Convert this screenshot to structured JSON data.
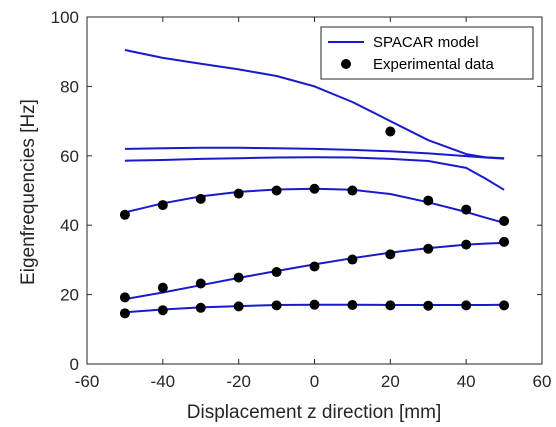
{
  "chart_data": {
    "type": "line",
    "title": "",
    "xlabel": "Displacement z direction [mm]",
    "ylabel": "Eigenfrequencies [Hz]",
    "xlim": [
      -60,
      60
    ],
    "ylim": [
      0,
      100
    ],
    "x_ticks": [
      "-60",
      "-40",
      "-20",
      "0",
      "20",
      "40",
      "60"
    ],
    "y_ticks": [
      "0",
      "20",
      "40",
      "60",
      "80",
      "100"
    ],
    "grid": false,
    "legend_position": "top-right",
    "colors": {
      "model": "#1a1acc",
      "data": "#000000",
      "axes": "#262626"
    },
    "legend": [
      {
        "label": "SPACAR model",
        "kind": "line"
      },
      {
        "label": "Experimental data",
        "kind": "marker"
      }
    ],
    "series": [
      {
        "kind": "line",
        "x": [
          -50,
          -40,
          -30,
          -20,
          -10,
          0,
          10,
          20,
          30,
          40,
          45,
          50
        ],
        "y": [
          90.5,
          88.2,
          86.5,
          84.9,
          83.0,
          80.0,
          75.5,
          70.0,
          64.5,
          60.5,
          59.6,
          59.3
        ]
      },
      {
        "kind": "line",
        "x": [
          -50,
          -40,
          -30,
          -20,
          -10,
          0,
          10,
          20,
          30,
          40,
          45,
          50
        ],
        "y": [
          62.0,
          62.2,
          62.3,
          62.3,
          62.2,
          62.0,
          61.7,
          61.3,
          60.7,
          59.9,
          59.5,
          59.2
        ]
      },
      {
        "kind": "line",
        "x": [
          -50,
          -40,
          -30,
          -20,
          -10,
          0,
          10,
          20,
          30,
          40,
          45,
          50
        ],
        "y": [
          58.6,
          58.8,
          59.1,
          59.3,
          59.5,
          59.6,
          59.5,
          59.1,
          58.5,
          56.5,
          53.5,
          50.2
        ]
      },
      {
        "kind": "line",
        "x": [
          -50,
          -40,
          -30,
          -20,
          -10,
          0,
          10,
          20,
          30,
          40,
          45,
          50
        ],
        "y": [
          43.7,
          46.3,
          48.3,
          49.6,
          50.3,
          50.5,
          50.2,
          49.0,
          46.6,
          43.8,
          42.2,
          40.7
        ]
      },
      {
        "kind": "line",
        "x": [
          -50,
          -40,
          -30,
          -20,
          -10,
          0,
          10,
          20,
          30,
          40,
          45,
          50
        ],
        "y": [
          18.7,
          20.6,
          22.7,
          24.8,
          26.8,
          28.7,
          30.5,
          32.1,
          33.4,
          34.4,
          34.7,
          34.9
        ]
      },
      {
        "kind": "line",
        "x": [
          -50,
          -40,
          -30,
          -20,
          -10,
          0,
          10,
          20,
          30,
          40,
          45,
          50
        ],
        "y": [
          14.9,
          15.7,
          16.3,
          16.7,
          17.0,
          17.1,
          17.1,
          17.0,
          17.0,
          17.0,
          17.0,
          17.1
        ]
      },
      {
        "kind": "scatter",
        "x": [
          -50,
          -40,
          -30,
          -20,
          -10,
          0,
          10,
          30,
          40,
          50
        ],
        "y": [
          43.0,
          45.8,
          47.6,
          49.1,
          50.0,
          50.5,
          50.0,
          47.1,
          44.5,
          41.2
        ]
      },
      {
        "kind": "scatter",
        "x": [
          20
        ],
        "y": [
          67.0
        ]
      },
      {
        "kind": "scatter",
        "x": [
          -50,
          -40,
          -30,
          -20,
          -10,
          0,
          10,
          20,
          30,
          40,
          50
        ],
        "y": [
          19.2,
          22.0,
          23.2,
          24.9,
          26.5,
          28.1,
          30.1,
          31.6,
          33.2,
          34.4,
          35.2
        ]
      },
      {
        "kind": "scatter",
        "x": [
          -50,
          -40,
          -30,
          -20,
          -10,
          0,
          10,
          20,
          30,
          40,
          50
        ],
        "y": [
          14.6,
          15.5,
          16.2,
          16.6,
          16.9,
          17.1,
          17.0,
          16.9,
          16.8,
          16.9,
          16.9
        ]
      }
    ]
  }
}
